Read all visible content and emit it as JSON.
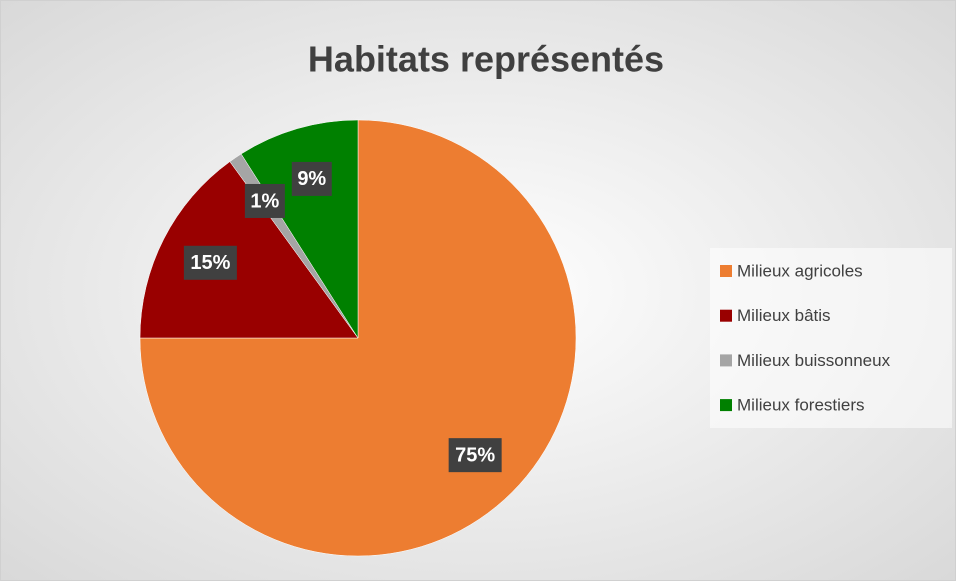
{
  "chart_data": {
    "type": "pie",
    "title": "Habitats représentés",
    "categories": [
      "Milieux agricoles",
      "Milieux bâtis",
      "Milieux buissonneux",
      "Milieux forestiers"
    ],
    "values": [
      75,
      15,
      1,
      9
    ],
    "value_labels": [
      "75%",
      "15%",
      "1%",
      "9%"
    ],
    "colors": [
      "#ed7d31",
      "#990000",
      "#a5a5a5",
      "#008000"
    ],
    "legend": "right"
  }
}
